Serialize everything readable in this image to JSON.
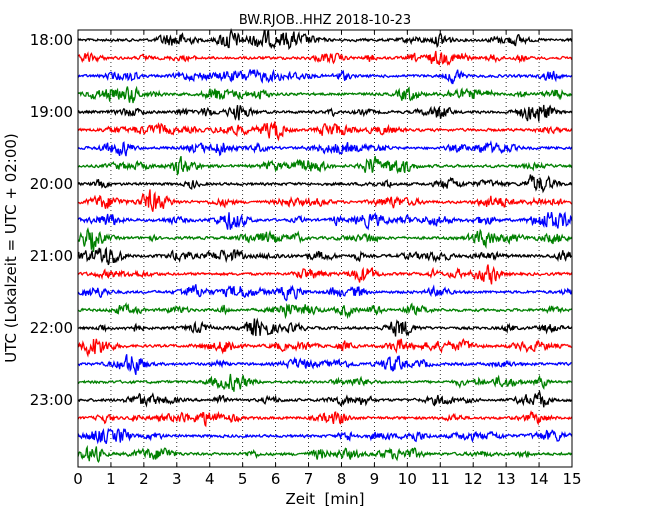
{
  "chart_data": {
    "type": "line",
    "title": "BW.RJOB..HHZ 2018-10-23",
    "xlabel": "Zeit  [min]",
    "ylabel": "UTC (Lokalzeit = UTC + 02:00)",
    "xlim": [
      0,
      15
    ],
    "x_ticks": [
      "0",
      "1",
      "2",
      "3",
      "4",
      "5",
      "6",
      "7",
      "8",
      "9",
      "10",
      "11",
      "12",
      "13",
      "14",
      "15"
    ],
    "y_ticks": [
      "18:00",
      "19:00",
      "20:00",
      "21:00",
      "22:00",
      "23:00"
    ],
    "trace_colors": [
      "#000000",
      "#ff0000",
      "#0000ff",
      "#008000"
    ],
    "trace_starts": [
      "18:00",
      "18:15",
      "18:30",
      "18:45",
      "19:00",
      "19:15",
      "19:30",
      "19:45",
      "20:00",
      "20:15",
      "20:30",
      "20:45",
      "21:00",
      "21:15",
      "21:30",
      "21:45",
      "22:00",
      "22:15",
      "22:30",
      "22:45",
      "23:00",
      "23:15",
      "23:30",
      "23:45"
    ],
    "grid": "vertical dotted",
    "legend": "none"
  }
}
